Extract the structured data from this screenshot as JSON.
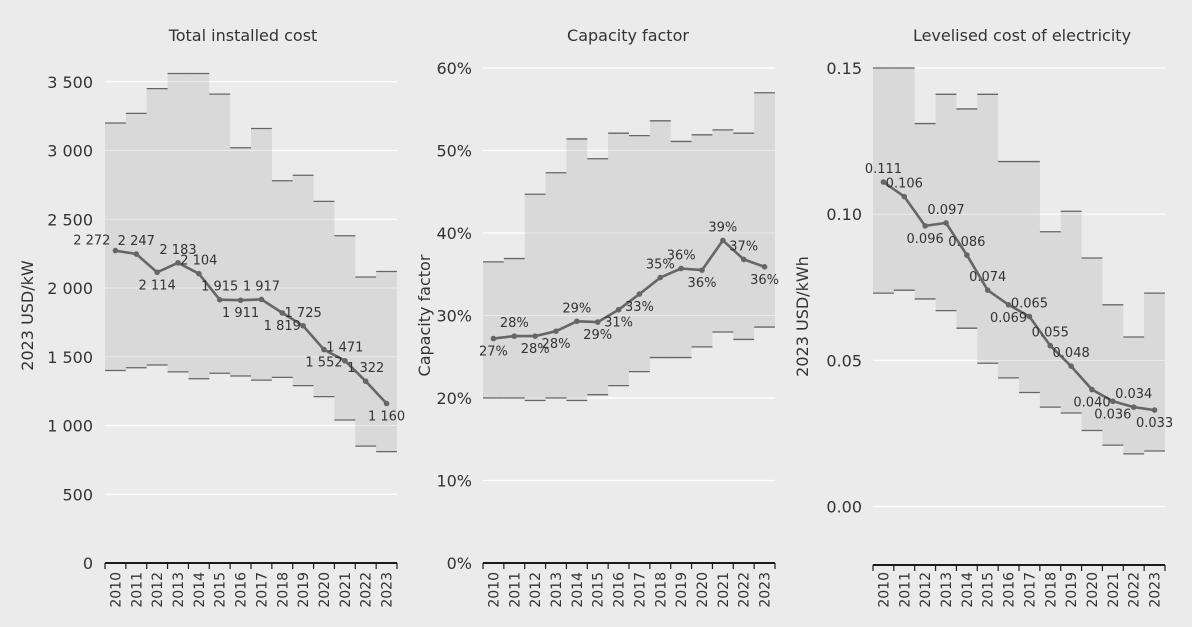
{
  "colors": {
    "background": "#ebebeb",
    "band": "#d9d9d9",
    "line": "#666666",
    "range_tick": "#666666",
    "grid": "#ffffff",
    "text": "#333333",
    "axis": "#1a1a1a"
  },
  "chart_data": [
    {
      "type": "line",
      "title": "Total installed cost",
      "ylabel": "2023 USD/kW",
      "xlabel": "",
      "categories": [
        "2010",
        "2011",
        "2012",
        "2013",
        "2014",
        "2015",
        "2016",
        "2017",
        "2018",
        "2019",
        "2020",
        "2021",
        "2022",
        "2023"
      ],
      "ylim": [
        0,
        3600
      ],
      "yticks": [
        0,
        500,
        1000,
        1500,
        2000,
        2500,
        3000,
        3500
      ],
      "ytick_labels": [
        "0",
        "500",
        "1 000",
        "1 500",
        "2 000",
        "2 500",
        "3 000",
        "3 500"
      ],
      "grid": true,
      "series": [
        {
          "values": [
            2272,
            2247,
            2114,
            2183,
            2104,
            1915,
            1911,
            1917,
            1819,
            1725,
            1552,
            1471,
            1322,
            1160
          ]
        }
      ],
      "data_labels": [
        "2 272",
        "2 247",
        "2 114",
        "2 183",
        "2 104",
        "1 915",
        "1 911",
        "1 917",
        "1 819",
        "1 725",
        "1 552",
        "1 471",
        "1 322",
        "1 160"
      ],
      "label_positions": [
        "left",
        "above",
        "below",
        "above",
        "above",
        "above",
        "below",
        "above",
        "below",
        "above",
        "below",
        "above",
        "above",
        "below"
      ],
      "range_high": [
        3200,
        3270,
        3450,
        3560,
        3560,
        3410,
        3020,
        3160,
        2780,
        2820,
        2630,
        2380,
        2080,
        2120
      ],
      "range_low": [
        1400,
        1420,
        1440,
        1390,
        1340,
        1380,
        1360,
        1330,
        1350,
        1290,
        1210,
        1040,
        850,
        810
      ]
    },
    {
      "type": "line",
      "title": "Capacity factor",
      "ylabel": "Capacity factor",
      "xlabel": "",
      "categories": [
        "2010",
        "2011",
        "2012",
        "2013",
        "2014",
        "2015",
        "2016",
        "2017",
        "2018",
        "2019",
        "2020",
        "2021",
        "2022",
        "2023"
      ],
      "ylim": [
        0,
        0.6
      ],
      "yticks": [
        0,
        0.1,
        0.2,
        0.3,
        0.4,
        0.5,
        0.6
      ],
      "ytick_labels": [
        "0%",
        "10%",
        "20%",
        "30%",
        "40%",
        "50%",
        "60%"
      ],
      "grid": true,
      "series": [
        {
          "values": [
            0.272,
            0.275,
            0.275,
            0.281,
            0.293,
            0.292,
            0.307,
            0.326,
            0.346,
            0.357,
            0.355,
            0.391,
            0.368,
            0.359
          ]
        }
      ],
      "data_labels": [
        "27%",
        "28%",
        "28%",
        "28%",
        "29%",
        "29%",
        "31%",
        "33%",
        "35%",
        "36%",
        "36%",
        "39%",
        "37%",
        "36%"
      ],
      "label_positions": [
        "below",
        "above",
        "below",
        "below",
        "above",
        "below",
        "below",
        "below",
        "above",
        "above",
        "below",
        "above",
        "above",
        "below"
      ],
      "range_high": [
        0.365,
        0.369,
        0.447,
        0.473,
        0.514,
        0.49,
        0.521,
        0.518,
        0.536,
        0.511,
        0.519,
        0.525,
        0.521,
        0.57
      ],
      "range_low": [
        0.2,
        0.2,
        0.197,
        0.2,
        0.197,
        0.204,
        0.215,
        0.232,
        0.249,
        0.249,
        0.262,
        0.28,
        0.271,
        0.286
      ]
    },
    {
      "type": "line",
      "title": "Levelised cost of electricity",
      "ylabel": "2023 USD/kWh",
      "xlabel": "",
      "categories": [
        "2010",
        "2011",
        "2012",
        "2013",
        "2014",
        "2015",
        "2016",
        "2017",
        "2018",
        "2019",
        "2020",
        "2021",
        "2022",
        "2023"
      ],
      "ylim": [
        -0.02,
        0.15
      ],
      "yticks": [
        0,
        0.05,
        0.1,
        0.15
      ],
      "ytick_labels": [
        "0.00",
        "0.05",
        "0.10",
        "0.15"
      ],
      "grid": true,
      "series": [
        {
          "values": [
            0.111,
            0.106,
            0.096,
            0.097,
            0.086,
            0.074,
            0.069,
            0.065,
            0.055,
            0.048,
            0.04,
            0.036,
            0.034,
            0.033
          ]
        }
      ],
      "data_labels": [
        "0.111",
        "0.106",
        "0.096",
        "0.097",
        "0.086",
        "0.074",
        "0.069",
        "0.065",
        "0.055",
        "0.048",
        "0.040",
        "0.036",
        "0.034",
        "0.033"
      ],
      "label_positions": [
        "above",
        "above",
        "below",
        "above",
        "above",
        "above",
        "below",
        "above",
        "above",
        "above",
        "below",
        "below",
        "above",
        "below"
      ],
      "range_high": [
        0.15,
        0.15,
        0.131,
        0.141,
        0.136,
        0.141,
        0.118,
        0.118,
        0.094,
        0.101,
        0.085,
        0.069,
        0.058,
        0.073
      ],
      "range_low": [
        0.073,
        0.074,
        0.071,
        0.067,
        0.061,
        0.049,
        0.044,
        0.039,
        0.034,
        0.032,
        0.026,
        0.021,
        0.018,
        0.019
      ]
    }
  ]
}
